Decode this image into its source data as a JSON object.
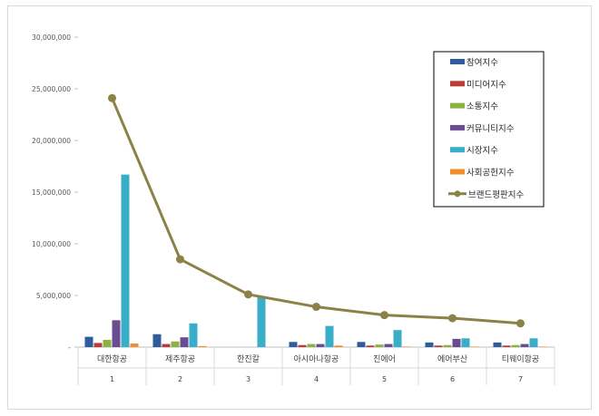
{
  "chart_data": {
    "type": "bar",
    "categories": [
      "대한항공",
      "제주항공",
      "한진칼",
      "아시아나항공",
      "진에어",
      "에어부산",
      "티웨이항공"
    ],
    "category_numbers": [
      "1",
      "2",
      "3",
      "4",
      "5",
      "6",
      "7"
    ],
    "ylim": [
      0,
      30000000
    ],
    "yticks": [
      0,
      5000000,
      10000000,
      15000000,
      20000000,
      25000000,
      30000000
    ],
    "ytick_labels": [
      "-",
      "5,000,000",
      "10,000,000",
      "15,000,000",
      "20,000,000",
      "25,000,000",
      "30,000,000"
    ],
    "grid": false,
    "legend_position": "top-right",
    "series": [
      {
        "name": "참여지수",
        "color": "#2e5c9e",
        "values": [
          1000000,
          1250000,
          0,
          500000,
          500000,
          450000,
          450000
        ]
      },
      {
        "name": "미디어지수",
        "color": "#be3a37",
        "values": [
          400000,
          300000,
          0,
          200000,
          150000,
          150000,
          150000
        ]
      },
      {
        "name": "소통지수",
        "color": "#8db23f",
        "values": [
          700000,
          550000,
          0,
          300000,
          250000,
          200000,
          200000
        ]
      },
      {
        "name": "커뮤니티지수",
        "color": "#6a4c93",
        "values": [
          2600000,
          950000,
          0,
          300000,
          300000,
          800000,
          300000
        ]
      },
      {
        "name": "시장지수",
        "color": "#3aadc8",
        "values": [
          16700000,
          2300000,
          4900000,
          2050000,
          1650000,
          850000,
          850000
        ]
      },
      {
        "name": "사회공헌지수",
        "color": "#f28e2b",
        "values": [
          350000,
          100000,
          0,
          150000,
          50000,
          50000,
          50000
        ]
      }
    ],
    "line_series": {
      "name": "브랜드평판지수",
      "color": "#8a8246",
      "values": [
        24100000,
        8500000,
        5100000,
        3900000,
        3100000,
        2800000,
        2300000
      ]
    }
  }
}
